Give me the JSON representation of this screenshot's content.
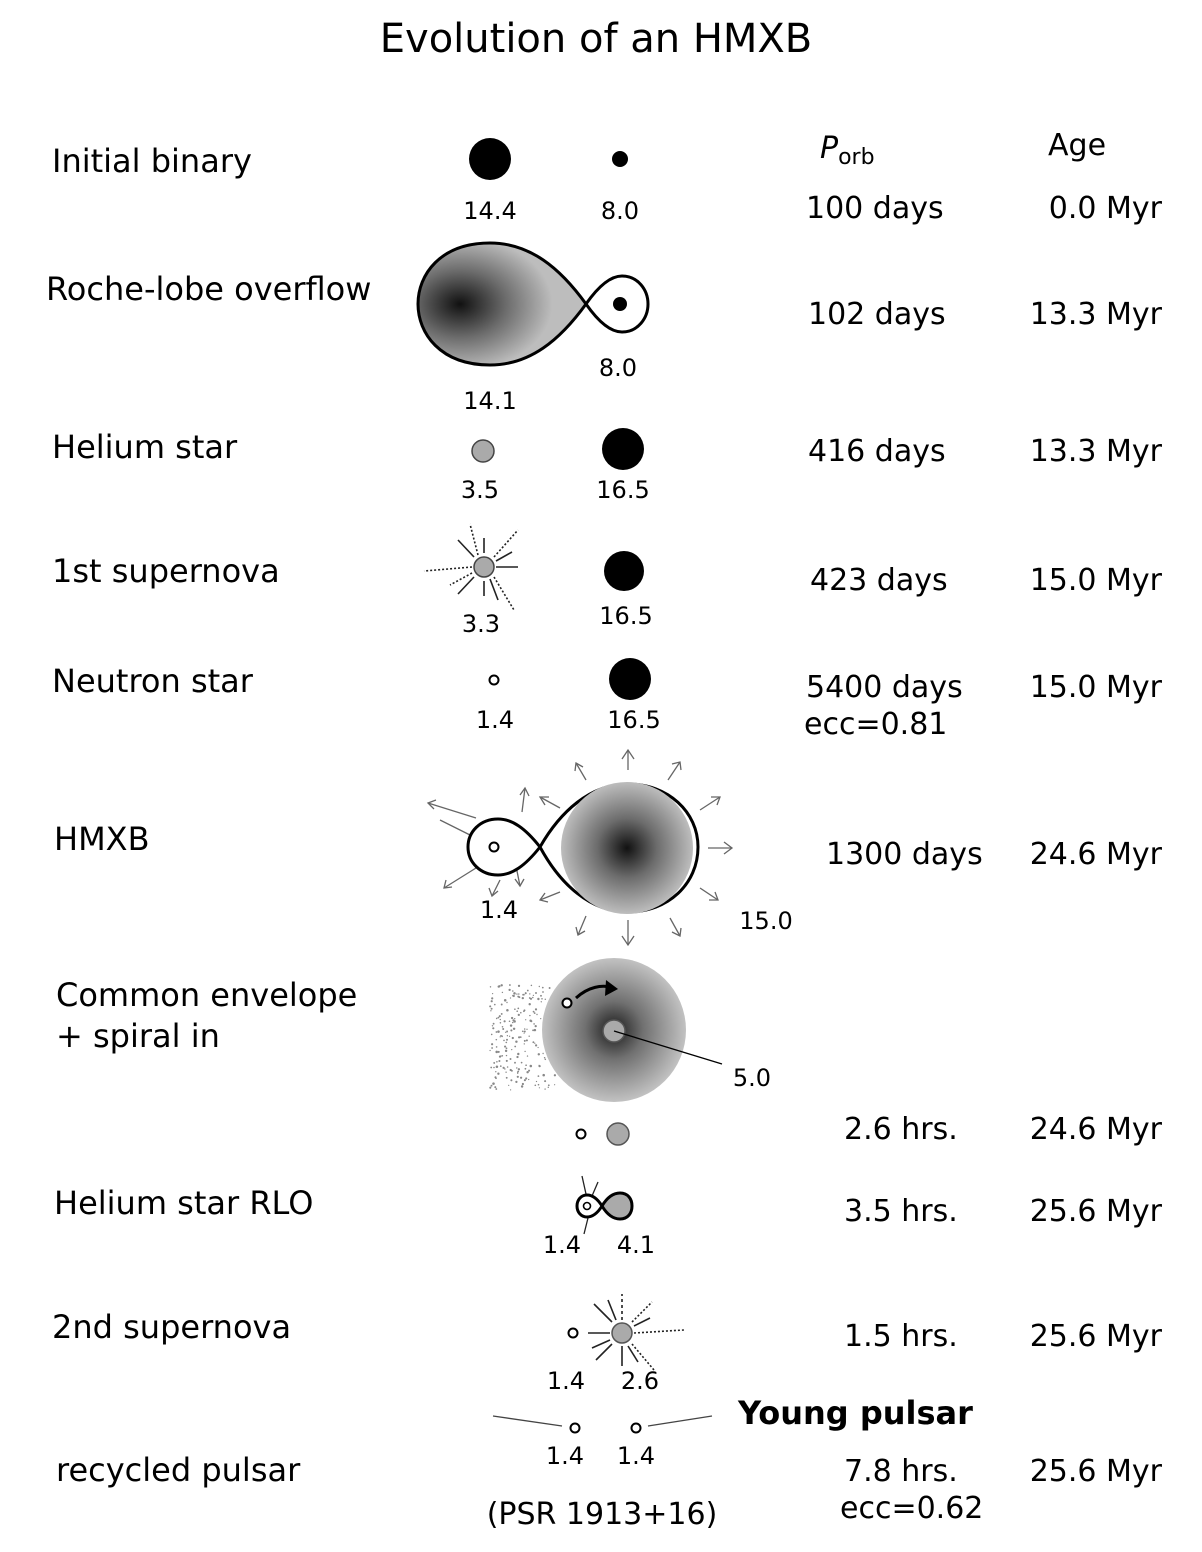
{
  "title": "Evolution of an HMXB",
  "headers": {
    "porb_main": "P",
    "porb_sub": "orb",
    "age": "Age"
  },
  "stages": [
    {
      "id": "initial-binary",
      "label": [
        "Initial binary"
      ],
      "masses": [
        "14.4",
        "8.0"
      ],
      "porb": [
        "100 days"
      ],
      "age": "0.0 Myr"
    },
    {
      "id": "roche-lobe-overflow",
      "label": [
        "Roche-lobe overflow"
      ],
      "masses": [
        "14.1",
        "8.0"
      ],
      "porb": [
        "102 days"
      ],
      "age": "13.3 Myr"
    },
    {
      "id": "helium-star",
      "label": [
        "Helium star"
      ],
      "masses": [
        "3.5",
        "16.5"
      ],
      "porb": [
        "416 days"
      ],
      "age": "13.3 Myr"
    },
    {
      "id": "first-supernova",
      "label": [
        "1st supernova"
      ],
      "masses": [
        "3.3",
        "16.5"
      ],
      "porb": [
        "423 days"
      ],
      "age": "15.0 Myr"
    },
    {
      "id": "neutron-star",
      "label": [
        "Neutron star"
      ],
      "masses": [
        "1.4",
        "16.5"
      ],
      "porb": [
        "5400 days",
        "ecc=0.81"
      ],
      "age": "15.0 Myr"
    },
    {
      "id": "hmxb",
      "label": [
        "HMXB"
      ],
      "masses": [
        "1.4",
        "15.0"
      ],
      "porb": [
        "1300 days"
      ],
      "age": "24.6 Myr"
    },
    {
      "id": "common-envelope",
      "label": [
        "Common envelope",
        "+ spiral in"
      ],
      "masses": [
        "5.0"
      ],
      "porb": [],
      "age": ""
    },
    {
      "id": "post-spiral-in",
      "label": [],
      "masses": [],
      "porb": [
        "2.6 hrs."
      ],
      "age": "24.6 Myr"
    },
    {
      "id": "helium-star-rlo",
      "label": [
        "Helium star RLO"
      ],
      "masses": [
        "1.4",
        "4.1"
      ],
      "porb": [
        "3.5 hrs."
      ],
      "age": "25.6 Myr"
    },
    {
      "id": "second-supernova",
      "label": [
        "2nd supernova"
      ],
      "masses": [
        "1.4",
        "2.6"
      ],
      "porb": [
        "1.5 hrs."
      ],
      "age": "25.6 Myr"
    },
    {
      "id": "recycled-pulsar",
      "label": [
        "recycled pulsar"
      ],
      "masses": [
        "1.4",
        "1.4"
      ],
      "porb": [
        "7.8 hrs.",
        "ecc=0.62"
      ],
      "age": "25.6 Myr"
    }
  ],
  "young_pulsar": "Young pulsar",
  "psr": "(PSR 1913+16)"
}
